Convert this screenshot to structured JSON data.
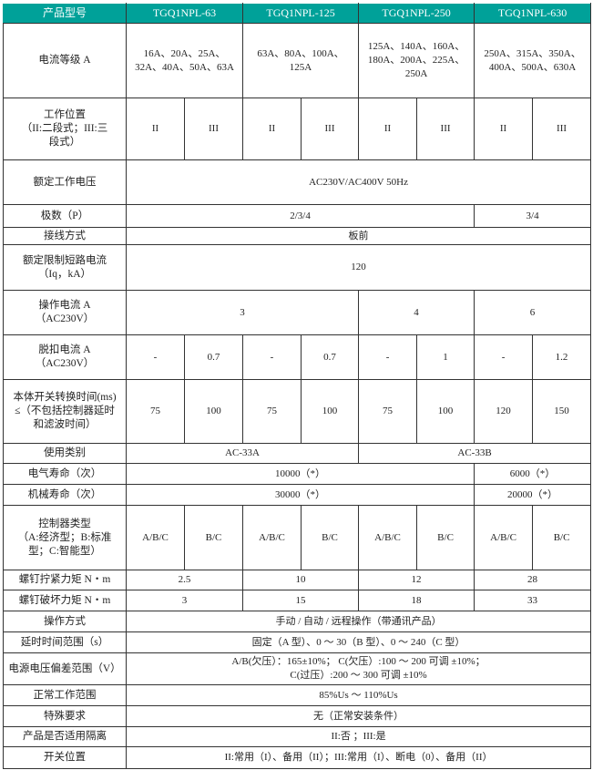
{
  "header": {
    "label": "产品型号",
    "models": [
      "TGQ1NPL-63",
      "TGQ1NPL-125",
      "TGQ1NPL-250",
      "TGQ1NPL-630"
    ]
  },
  "colors": {
    "header_bg": "#00a199",
    "header_text": "#ffffff"
  },
  "rows": {
    "current": {
      "label": "电流等级 A",
      "values": [
        "16A、20A、25A、\n32A、40A、50A、63A",
        "63A、80A、100A、\n125A",
        "125A、140A、160A、\n180A、200A、225A、\n250A",
        "250A、315A、350A、\n400A、500A、630A"
      ]
    },
    "position": {
      "label": "工作位置\n（II:二段式；III:三\n段式）",
      "values": [
        "II",
        "III",
        "II",
        "III",
        "II",
        "III",
        "II",
        "III"
      ]
    },
    "voltage": {
      "label": "额定工作电压",
      "value": "AC230V/AC400V 50Hz"
    },
    "poles": {
      "label": "极数（P）",
      "values": [
        "2/3/4",
        "3/4"
      ]
    },
    "wiring": {
      "label": "接线方式",
      "value": "板前"
    },
    "short_circuit": {
      "label": "额定限制短路电流\n（Iq，kA）",
      "value": "120"
    },
    "operating_current": {
      "label": "操作电流 A\n（AC230V）",
      "values": [
        "3",
        "4",
        "6"
      ]
    },
    "trip_current": {
      "label": "脱扣电流 A\n（AC230V）",
      "values": [
        "-",
        "0.7",
        "-",
        "0.7",
        "-",
        "1",
        "-",
        "1.2"
      ]
    },
    "switch_time": {
      "label": "本体开关转换时间(ms)\n≤（不包括控制器延时\n和滤波时间）",
      "values": [
        "75",
        "100",
        "75",
        "100",
        "75",
        "100",
        "120",
        "150"
      ]
    },
    "category": {
      "label": "使用类别",
      "values": [
        "AC-33A",
        "AC-33B"
      ]
    },
    "electrical_life": {
      "label": "电气寿命（次）",
      "values": [
        "10000（*）",
        "6000（*）"
      ]
    },
    "mechanical_life": {
      "label": "机械寿命（次）",
      "values": [
        "30000（*）",
        "20000（*）"
      ]
    },
    "controller": {
      "label": "控制器类型\n（A:经济型；B:标准\n型；C:智能型）",
      "values": [
        "A/B/C",
        "B/C",
        "A/B/C",
        "B/C",
        "A/B/C",
        "B/C",
        "A/B/C",
        "B/C"
      ]
    },
    "tightening_torque": {
      "label": "螺钉拧紧力矩 N・m",
      "values": [
        "2.5",
        "10",
        "12",
        "28"
      ]
    },
    "breaking_torque": {
      "label": "螺钉破坏力矩 N・m",
      "values": [
        "3",
        "15",
        "18",
        "33"
      ]
    },
    "operation": {
      "label": "操作方式",
      "value": "手动 / 自动 / 远程操作（带通讯产品）"
    },
    "delay": {
      "label": "延时时间范围（s）",
      "value": "固定（A 型）、0 ～ 30（B 型）、0 ～ 240（C 型）"
    },
    "deviation": {
      "label": "电源电压偏差范围（V）",
      "value": "A/B(欠压）：165±10%； C(欠压）:100 ～ 200 可调 ±10%；\nC(过压）:200 ～ 300 可调 ±10%"
    },
    "normal_range": {
      "label": "正常工作范围",
      "value": "85%Us ～ 110%Us"
    },
    "special": {
      "label": "特殊要求",
      "value": "无（正常安装条件）"
    },
    "isolation": {
      "label": "产品是否适用隔离",
      "value": "II:否 ；III:是"
    },
    "switch_position": {
      "label": "开关位置",
      "value": "II:常用（I）、备用（II）；III:常用（I）、断电（0）、备用（II）"
    }
  }
}
